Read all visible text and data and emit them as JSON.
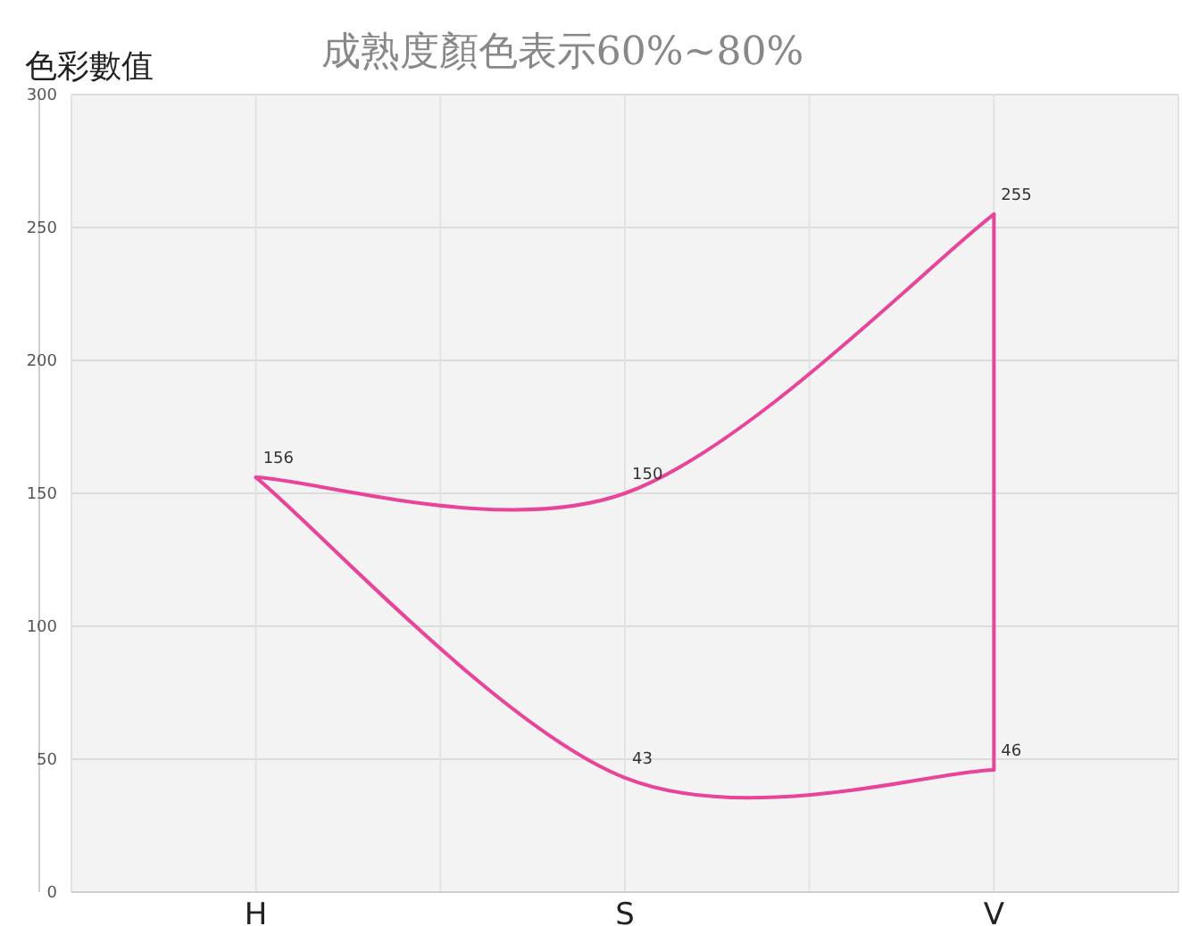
{
  "chart_data": {
    "type": "line",
    "title": "成熟度顏色表示60%~80%",
    "ylabel": "色彩數值",
    "categories": [
      "H",
      "S",
      "V"
    ],
    "series": [
      {
        "color": "#e8449a",
        "values": [
          156,
          150,
          255
        ],
        "value_labels": [
          "156",
          "150",
          "255"
        ]
      },
      {
        "color": "#e8449a",
        "values": [
          156,
          43,
          46
        ],
        "value_labels": [
          null,
          "43",
          "46"
        ]
      },
      {
        "color": "#e8449a",
        "x": [
          "V",
          "V"
        ],
        "values": [
          255,
          46
        ]
      }
    ],
    "ylim": [
      0,
      300
    ],
    "yticks": [
      0,
      50,
      100,
      150,
      200,
      250,
      300
    ],
    "grid": true,
    "marker": "none"
  }
}
